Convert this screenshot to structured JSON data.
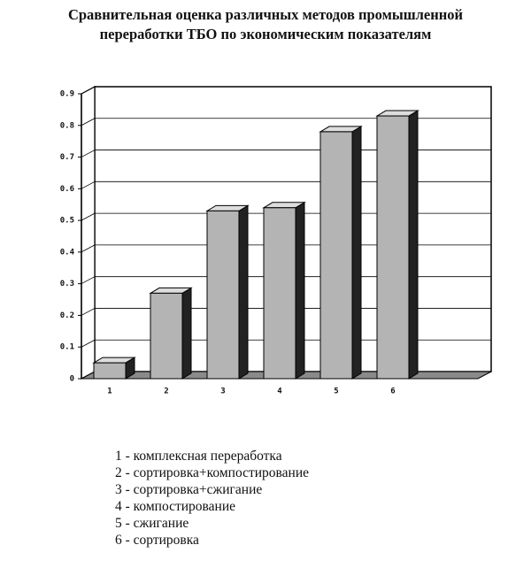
{
  "chart_data": {
    "type": "bar3d",
    "title": [
      "Сравнительная оценка различных методов промышленной",
      "переработки ТБО по экономическим показателям"
    ],
    "categories": [
      "1",
      "2",
      "3",
      "4",
      "5",
      "6"
    ],
    "category_descriptions": [
      "комплексная переработка",
      "сортировка+компостирование",
      "сортировка+сжигание",
      "компостирование",
      "сжигание",
      "сортировка"
    ],
    "values": [
      0.05,
      0.27,
      0.53,
      0.54,
      0.78,
      0.83
    ],
    "color": "#b4b4b4",
    "ylim": [
      0,
      0.9
    ],
    "yticks": [
      0,
      0.1,
      0.2,
      0.3,
      0.4,
      0.5,
      0.6,
      0.7,
      0.8,
      0.9
    ],
    "grid": true
  }
}
